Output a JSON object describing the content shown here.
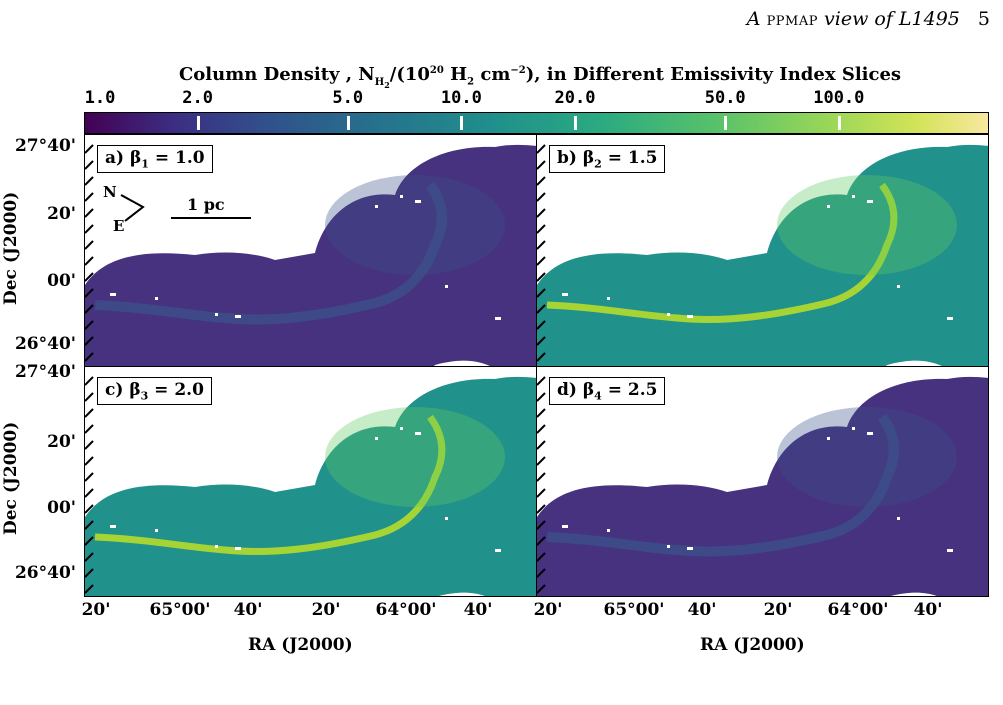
{
  "running_head": {
    "title_prefix": "A ",
    "title_smallcaps": "ppmap",
    "title_suffix": " view of L1495",
    "page_number": "5"
  },
  "colorbar": {
    "title_start": "Column Density , N",
    "title_sub": "H",
    "title_subsub": "2",
    "title_mid": "/(10",
    "title_sup": "20",
    "title_mid2": " H",
    "title_sub2": "2",
    "title_mid3": " cm",
    "title_sup2": "−2",
    "title_end": "), in Different Emissivity Index Slices",
    "ticks": [
      {
        "label": "1.0",
        "value": 1.0
      },
      {
        "label": "2.0",
        "value": 2.0
      },
      {
        "label": "5.0",
        "value": 5.0
      },
      {
        "label": "10.0",
        "value": 10.0
      },
      {
        "label": "20.0",
        "value": 20.0
      },
      {
        "label": "50.0",
        "value": 50.0
      },
      {
        "label": "100.0",
        "value": 100.0
      }
    ],
    "range": [
      1.0,
      250.0
    ],
    "scale": "log",
    "colormap": "viridis"
  },
  "panels": [
    {
      "id": "a",
      "label_prefix": "a) β",
      "label_sub": "1",
      "label_suffix": " = 1.0",
      "beta": 1.0,
      "brightness": 0.08
    },
    {
      "id": "b",
      "label_prefix": "b) β",
      "label_sub": "2",
      "label_suffix": " = 1.5",
      "beta": 1.5,
      "brightness": 0.42
    },
    {
      "id": "c",
      "label_prefix": "c) β",
      "label_sub": "3",
      "label_suffix": " = 2.0",
      "beta": 2.0,
      "brightness": 0.48
    },
    {
      "id": "d",
      "label_prefix": "d) β",
      "label_sub": "4",
      "label_suffix": " = 2.5",
      "beta": 2.5,
      "brightness": 0.12
    }
  ],
  "compass": {
    "north": "N",
    "east": "E"
  },
  "scalebar": {
    "label": "1 pc"
  },
  "axes": {
    "ylabel": "Dec (J2000)",
    "xlabel": "RA (J2000)",
    "yticks_top": [
      "27°40'",
      "20'",
      "00'",
      "26°40'"
    ],
    "yticks_bottom": [
      "27°40'",
      "20'",
      "00'",
      "26°40'"
    ],
    "xticks": [
      "20'",
      "65°00'",
      "40'",
      "20'",
      "64°00'",
      "40'"
    ]
  },
  "colors": {
    "deep": "#46327e",
    "low": "#3b528b",
    "mid": "#21918c",
    "high": "#5ec962",
    "peak": "#bddf26",
    "background": "#ffffff"
  },
  "chart_data": {
    "type": "heatmap",
    "title": "Column Density , NH2/(10^20 H2 cm^-2), in Different Emissivity Index Slices",
    "xlabel": "RA (J2000)",
    "ylabel": "Dec (J2000)",
    "zlim": [
      1.0,
      250.0
    ],
    "zscale": "log",
    "panels": [
      "a) β1 = 1.0",
      "b) β2 = 1.5",
      "c) β3 = 2.0",
      "d) β4 = 2.5"
    ]
  }
}
